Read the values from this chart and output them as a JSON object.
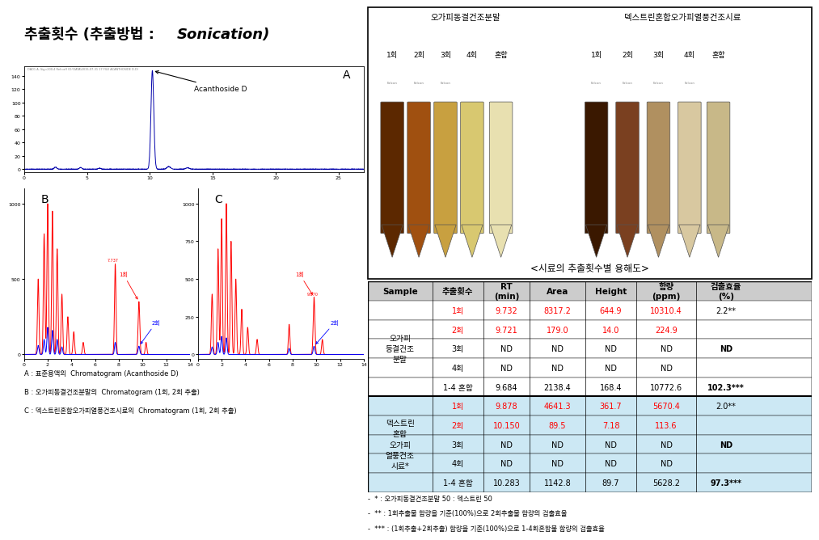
{
  "title_part1": "추출횟수 (추출방법 : ",
  "title_part2": "Sonication)",
  "fig_bg": "#ffffff",
  "table_header": [
    "Sample",
    "추출횟수",
    "RT\n(min)",
    "Area",
    "Height",
    "함량\n(ppm)",
    "검출효율\n(%)"
  ],
  "caption_top": "<시료의 추출횟수별 용해도>",
  "photo_label_left": "오가피동결건조분말",
  "photo_label_right": "덱스트린혼합오가피열풍건조시료",
  "tube_labels_left": [
    "1회",
    "2회",
    "3회",
    "4회",
    "혼합"
  ],
  "tube_labels_right": [
    "1회",
    "2회",
    "3회",
    "4회",
    "혼합"
  ],
  "tube_colors_left": [
    "#5C2800",
    "#A05010",
    "#C8A040",
    "#D8C870",
    "#E8E0B0"
  ],
  "tube_colors_right": [
    "#3A1800",
    "#7A4020",
    "#B09060",
    "#D8C8A0",
    "#C8B888"
  ],
  "rows_data": [
    [
      "1회",
      "9.732",
      "8317.2",
      "644.9",
      "10310.4",
      "2.2**"
    ],
    [
      "2회",
      "9.721",
      "179.0",
      "14.0",
      "224.9",
      ""
    ],
    [
      "3회",
      "ND",
      "ND",
      "ND",
      "ND",
      "ND"
    ],
    [
      "4회",
      "ND",
      "ND",
      "ND",
      "ND",
      ""
    ],
    [
      "1-4 혼합",
      "9.684",
      "2138.4",
      "168.4",
      "10772.6",
      "102.3***"
    ],
    [
      "1회",
      "9.878",
      "4641.3",
      "361.7",
      "5670.4",
      "2.0**"
    ],
    [
      "2회",
      "10.150",
      "89.5",
      "7.18",
      "113.6",
      ""
    ],
    [
      "3회",
      "ND",
      "ND",
      "ND",
      "ND",
      "ND"
    ],
    [
      "4회",
      "ND",
      "ND",
      "ND",
      "ND",
      ""
    ],
    [
      "1-4 혼합",
      "10.283",
      "1142.8",
      "89.7",
      "5628.2",
      "97.3***"
    ]
  ],
  "sample_label1": "오가피\n등결건조\n분말",
  "sample_label2": "덱스트린\n혼합\n오가피\n열풍건조\n시료*",
  "red_rows": [
    0,
    1,
    5,
    6
  ],
  "blue_bg_rows": [
    5,
    6,
    7,
    8,
    9
  ],
  "footnote_left": [
    "A : 표준용액의  Chromatogram (Acanthoside D)",
    "B : 오가피동결건조분말의  Chromatogram (1회, 2회 추출)",
    "C : 덱스트린혼합오가피열풍건조시료의  Chromatogram (1회, 2회 추출)"
  ],
  "footnote_right": [
    "-  * : 오가피동결건조분말 50 : 덱스트린 50",
    "-  ** : 1회추출물 함량을 기준(100%)으로 2회추출물 함량의 검출효율",
    "-  *** : (1회추출+2회추출) 함량을 기준(100%)으로 1-4회혼합물 함량의 검출효율"
  ]
}
